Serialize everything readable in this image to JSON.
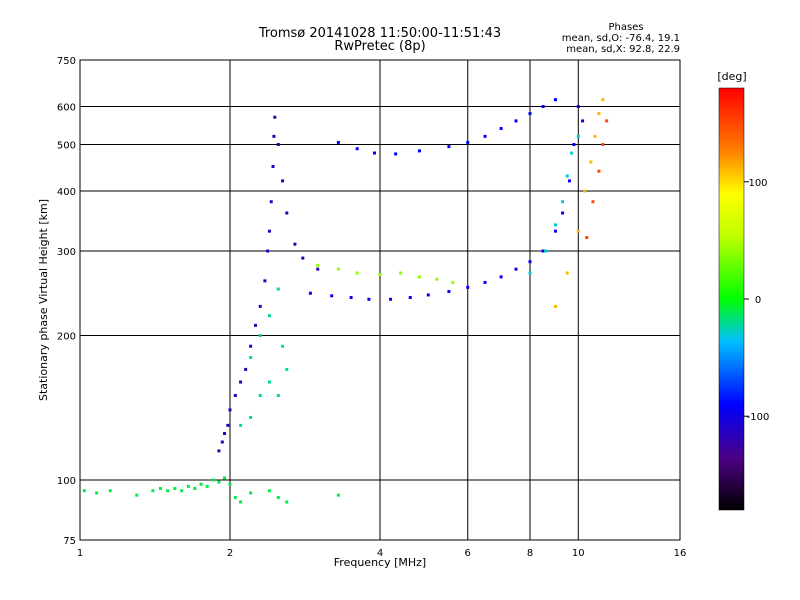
{
  "header": {
    "title_line1": "Tromsø 20141028 11:50:00-11:51:43",
    "title_line2": "RwPretec (8p)"
  },
  "stats": {
    "title": "Phases",
    "o_line": "mean, sd,O: -76.4, 19.1",
    "x_line": "mean, sd,X:  92.8, 22.9"
  },
  "colorbar": {
    "unit": "[deg]",
    "ticks": [
      {
        "label": "100",
        "value": 100
      },
      {
        "label": "0",
        "value": 0
      },
      {
        "label": "-100",
        "value": -100
      }
    ],
    "range": [
      -180,
      180
    ]
  },
  "chart_data": {
    "type": "scatter",
    "xlabel": "Frequency [MHz]",
    "ylabel": "Stationary phase Virtual Height [km]",
    "xscale": "log",
    "yscale": "log",
    "xlim": [
      1,
      16
    ],
    "ylim": [
      75,
      750
    ],
    "grid": true,
    "xticks": [
      {
        "label": "1",
        "value": 1
      },
      {
        "label": "2",
        "value": 2
      },
      {
        "label": "4",
        "value": 4
      },
      {
        "label": "6",
        "value": 6
      },
      {
        "label": "8",
        "value": 8
      },
      {
        "label": "10",
        "value": 10
      },
      {
        "label": "16",
        "value": 16
      }
    ],
    "yticks": [
      {
        "label": "75",
        "value": 75
      },
      {
        "label": "100",
        "value": 100
      },
      {
        "label": "200",
        "value": 200
      },
      {
        "label": "300",
        "value": 300
      },
      {
        "label": "400",
        "value": 400
      },
      {
        "label": "500",
        "value": 500
      },
      {
        "label": "600",
        "value": 600
      },
      {
        "label": "750",
        "value": 750
      }
    ],
    "series": [
      {
        "points": [
          [
            1.02,
            95
          ],
          [
            1.08,
            94
          ],
          [
            1.15,
            95
          ],
          [
            1.3,
            93
          ],
          [
            1.4,
            95
          ],
          [
            1.45,
            96
          ],
          [
            1.5,
            95
          ],
          [
            1.55,
            96
          ],
          [
            1.6,
            95
          ],
          [
            1.65,
            97
          ],
          [
            1.7,
            96
          ],
          [
            1.75,
            98
          ],
          [
            1.8,
            97
          ],
          [
            1.85,
            100
          ],
          [
            1.9,
            99
          ],
          [
            1.95,
            101
          ],
          [
            2.0,
            98
          ],
          [
            2.05,
            92
          ],
          [
            2.1,
            90
          ],
          [
            2.2,
            94
          ],
          [
            2.4,
            95
          ],
          [
            2.5,
            92
          ],
          [
            2.6,
            90
          ],
          [
            3.3,
            93
          ]
        ],
        "phase": -10
      },
      {
        "points": [
          [
            1.9,
            115
          ],
          [
            1.93,
            120
          ],
          [
            1.95,
            125
          ],
          [
            1.98,
            130
          ],
          [
            2.0,
            140
          ],
          [
            2.05,
            150
          ],
          [
            2.1,
            160
          ],
          [
            2.15,
            170
          ],
          [
            2.2,
            190
          ],
          [
            2.25,
            210
          ],
          [
            2.3,
            230
          ],
          [
            2.35,
            260
          ],
          [
            2.38,
            300
          ],
          [
            2.4,
            330
          ],
          [
            2.42,
            380
          ],
          [
            2.44,
            450
          ],
          [
            2.45,
            520
          ],
          [
            2.46,
            570
          ],
          [
            2.5,
            500
          ],
          [
            2.55,
            420
          ],
          [
            2.6,
            360
          ],
          [
            2.7,
            310
          ],
          [
            2.8,
            290
          ],
          [
            3.0,
            275
          ]
        ],
        "phase": -115
      },
      {
        "points": [
          [
            2.2,
            180
          ],
          [
            2.3,
            200
          ],
          [
            2.4,
            220
          ],
          [
            2.5,
            250
          ],
          [
            2.55,
            190
          ],
          [
            2.6,
            170
          ],
          [
            2.5,
            150
          ],
          [
            2.4,
            160
          ],
          [
            2.3,
            150
          ],
          [
            2.2,
            135
          ],
          [
            2.1,
            130
          ]
        ],
        "phase": -20
      },
      {
        "points": [
          [
            2.9,
            245
          ],
          [
            3.2,
            242
          ],
          [
            3.5,
            240
          ],
          [
            3.8,
            238
          ],
          [
            4.2,
            238
          ],
          [
            4.6,
            240
          ],
          [
            5.0,
            243
          ],
          [
            5.5,
            247
          ],
          [
            6.0,
            252
          ],
          [
            6.5,
            258
          ],
          [
            7.0,
            265
          ],
          [
            7.5,
            275
          ],
          [
            8.0,
            285
          ],
          [
            8.5,
            300
          ],
          [
            9.0,
            330
          ],
          [
            9.3,
            360
          ],
          [
            9.6,
            420
          ],
          [
            9.8,
            500
          ],
          [
            10.0,
            600
          ],
          [
            10.2,
            560
          ]
        ],
        "phase": -95
      },
      {
        "points": [
          [
            3.0,
            280
          ],
          [
            3.3,
            275
          ],
          [
            3.6,
            270
          ],
          [
            4.0,
            268
          ],
          [
            4.4,
            270
          ],
          [
            4.8,
            265
          ],
          [
            5.2,
            262
          ],
          [
            5.6,
            258
          ]
        ],
        "phase": 40
      },
      {
        "points": [
          [
            3.3,
            505
          ],
          [
            3.6,
            490
          ],
          [
            3.9,
            480
          ],
          [
            4.3,
            478
          ],
          [
            4.8,
            485
          ],
          [
            5.5,
            495
          ],
          [
            6.0,
            505
          ],
          [
            6.5,
            520
          ],
          [
            7.0,
            540
          ],
          [
            7.5,
            560
          ],
          [
            8.0,
            580
          ],
          [
            8.5,
            600
          ],
          [
            9.0,
            620
          ]
        ],
        "phase": -90
      },
      {
        "points": [
          [
            8.0,
            270
          ],
          [
            8.6,
            300
          ],
          [
            9.0,
            340
          ],
          [
            9.3,
            380
          ],
          [
            9.5,
            430
          ],
          [
            9.7,
            480
          ],
          [
            10.0,
            520
          ]
        ],
        "phase": -30
      },
      {
        "points": [
          [
            9.0,
            230
          ],
          [
            9.5,
            270
          ],
          [
            10.0,
            330
          ],
          [
            10.3,
            400
          ],
          [
            10.6,
            460
          ],
          [
            10.8,
            520
          ],
          [
            11.0,
            580
          ],
          [
            11.2,
            620
          ]
        ],
        "phase": 110
      },
      {
        "points": [
          [
            10.4,
            320
          ],
          [
            10.7,
            380
          ],
          [
            11.0,
            440
          ],
          [
            11.2,
            500
          ],
          [
            11.4,
            560
          ]
        ],
        "phase": 150
      }
    ]
  }
}
